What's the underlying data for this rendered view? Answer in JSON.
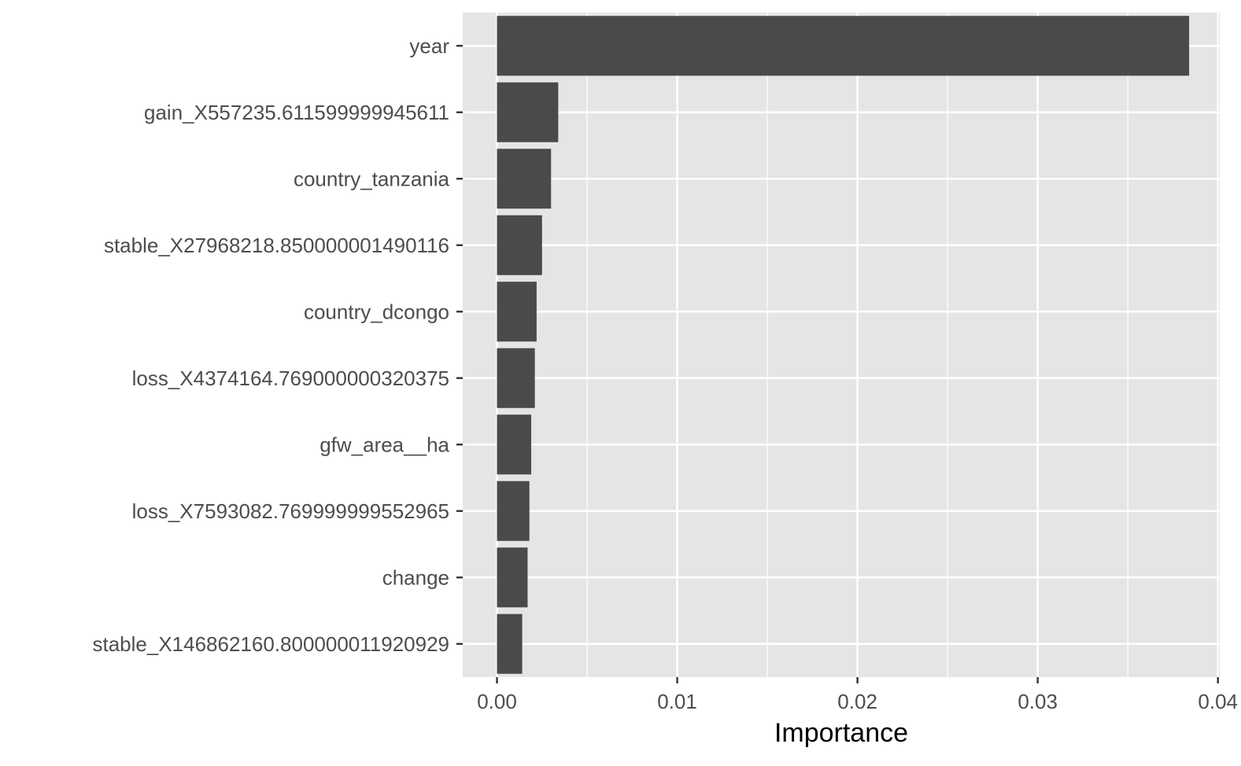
{
  "chart_data": {
    "type": "bar",
    "orientation": "horizontal",
    "title": "",
    "xlabel": "Importance",
    "ylabel": "",
    "categories": [
      "year",
      "gain_X557235.611599999945611",
      "country_tanzania",
      "stable_X27968218.850000001490116",
      "country_dcongo",
      "loss_X4374164.769000000320375",
      "gfw_area__ha",
      "loss_X7593082.769999999552965",
      "change",
      "stable_X146862160.800000011920929"
    ],
    "values": [
      0.0384,
      0.0034,
      0.003,
      0.0025,
      0.0022,
      0.0021,
      0.0019,
      0.0018,
      0.0017,
      0.0014
    ],
    "xlim": [
      -0.0019,
      0.0401
    ],
    "xticks": [
      0.0,
      0.01,
      0.02,
      0.03,
      0.04
    ],
    "xtick_labels": [
      "0.00",
      "0.01",
      "0.02",
      "0.03",
      "0.04"
    ],
    "grid": true,
    "colors": {
      "panel_background": "#e5e5e5",
      "grid_major": "#ffffff",
      "bar_fill": "#4a4a4a",
      "tick": "#333333",
      "text": "#4d4d4d"
    }
  }
}
